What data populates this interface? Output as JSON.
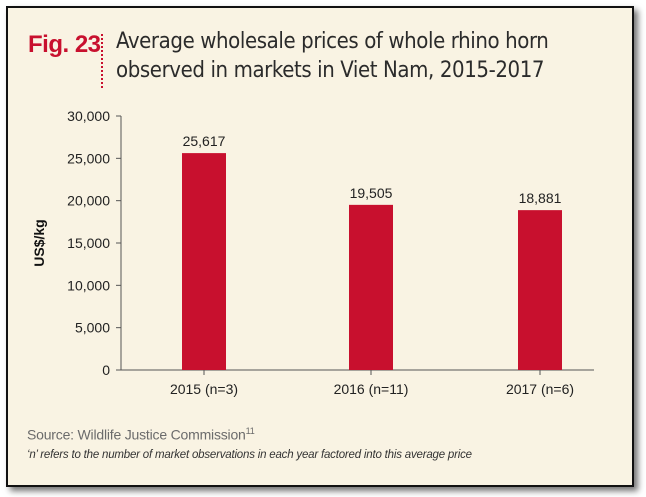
{
  "figure": {
    "label": "Fig. 23",
    "title": "Average wholesale prices of whole rhino horn observed in markets in Viet Nam, 2015-2017",
    "source": "Source: Wildlife Justice Commission",
    "source_superscript": "11",
    "note": "‘n’ refers to the number of market observations in each year factored into this average price"
  },
  "chart_data": {
    "type": "bar",
    "categories": [
      "2015 (n=3)",
      "2016 (n=11)",
      "2017 (n=6)"
    ],
    "values": [
      25617,
      19505,
      18881
    ],
    "data_labels": [
      "25,617",
      "19,505",
      "18,881"
    ],
    "xlabel": "",
    "ylabel": "US$/kg",
    "ylim": [
      0,
      30000
    ],
    "yticks": [
      0,
      5000,
      10000,
      15000,
      20000,
      25000,
      30000
    ],
    "ytick_labels": [
      "0",
      "5,000",
      "10,000",
      "15,000",
      "20,000",
      "25,000",
      "30,000"
    ],
    "grid": false,
    "bar_color": "#c8102e"
  },
  "colors": {
    "accent": "#c8102e",
    "background": "#f9f3e3",
    "text": "#2b2b2b"
  }
}
